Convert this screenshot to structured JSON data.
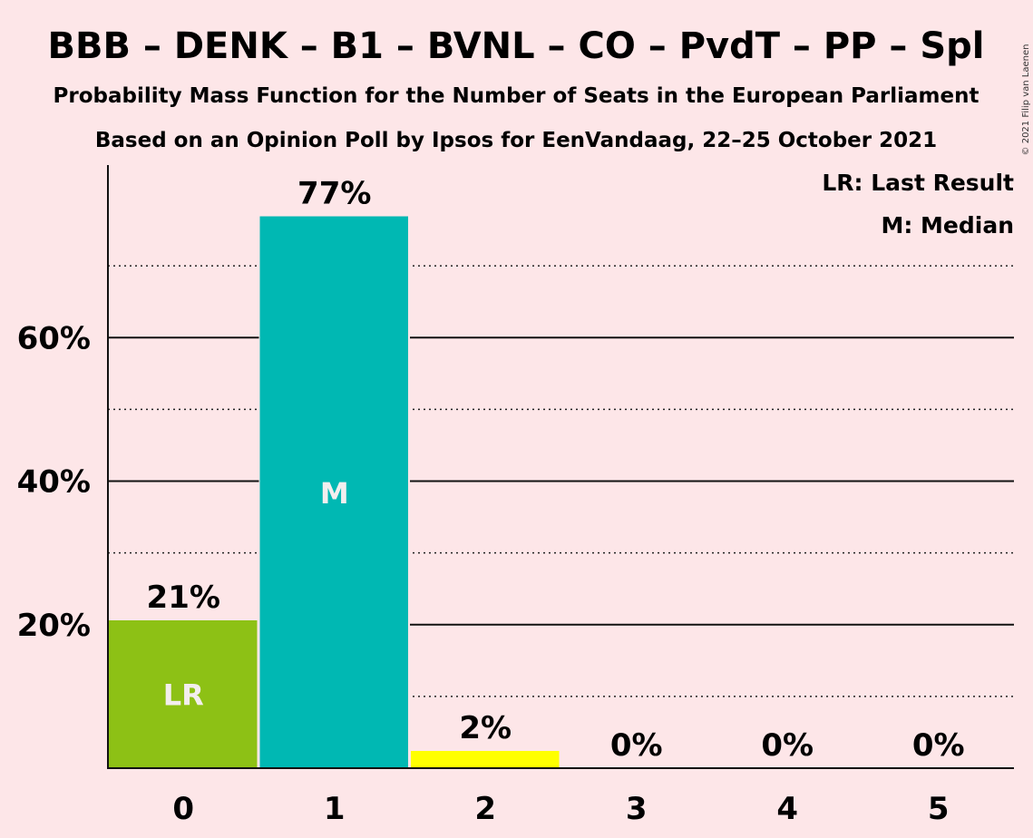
{
  "title": "BBB – DENK – B1 – BVNL – CO – PvdT – PP – Spl",
  "subtitle1": "Probability Mass Function for the Number of Seats in the European Parliament",
  "subtitle2": "Based on an Opinion Poll by Ipsos for EenVandaag, 22–25 October 2021",
  "copyright": "© 2021 Filip van Laenen",
  "legend": {
    "lr": "LR: Last Result",
    "m": "M: Median"
  },
  "colors": {
    "background": "#fde6e8",
    "green": "#8dc115",
    "teal": "#00b8b3",
    "yellow": "#ffff00"
  },
  "chart_data": {
    "type": "bar",
    "categories": [
      "0",
      "1",
      "2",
      "3",
      "4",
      "5"
    ],
    "values": [
      20.6,
      76.9,
      2.4,
      0,
      0,
      0
    ],
    "value_labels": [
      "21%",
      "77%",
      "2%",
      "0%",
      "0%",
      "0%"
    ],
    "bar_colors": [
      "#8dc115",
      "#00b8b3",
      "#ffff00",
      "#ffff00",
      "#ffff00",
      "#ffff00"
    ],
    "bar_markers": [
      "LR",
      "M",
      "",
      "",
      "",
      ""
    ],
    "yticks": [
      20,
      40,
      60
    ],
    "ytick_labels": [
      "20%",
      "40%",
      "60%"
    ],
    "minor_gridlines": [
      10,
      30,
      50,
      70
    ],
    "ylim": [
      0,
      80
    ]
  }
}
